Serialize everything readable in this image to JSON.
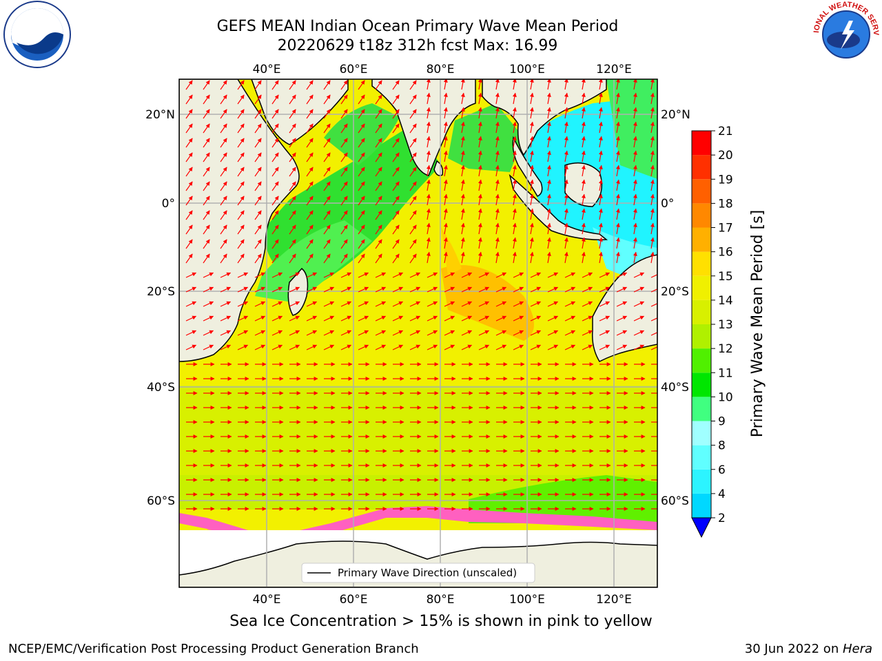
{
  "title_line1": "GEFS MEAN Indian Ocean Primary Wave Mean Period",
  "title_line2": "20220629 t18z 312h fcst   Max: 16.99",
  "logos": {
    "left": "NOAA",
    "right": "NATIONAL WEATHER SERVICE"
  },
  "lon_labels": [
    "40°E",
    "60°E",
    "80°E",
    "100°E",
    "120°E"
  ],
  "lat_labels": [
    "20°N",
    "0°",
    "20°S",
    "40°S",
    "60°S"
  ],
  "colorbar": {
    "label": "Primary Wave Mean Period [s]",
    "ticks": [
      "2",
      "4",
      "6",
      "8",
      "9",
      "10",
      "11",
      "12",
      "13",
      "14",
      "15",
      "16",
      "17",
      "18",
      "19",
      "20",
      "21"
    ],
    "colors": [
      "#0060ff",
      "#00d8ff",
      "#2cf4ff",
      "#60ffff",
      "#a0ffff",
      "#40ff80",
      "#00e600",
      "#50f000",
      "#b0f000",
      "#d8f000",
      "#f0f000",
      "#ffe000",
      "#ffb000",
      "#ff8800",
      "#ff6000",
      "#ff3000",
      "#ff0000"
    ],
    "extend_color": "#0000ff"
  },
  "legend_label": "Primary Wave Direction (unscaled)",
  "sea_ice_note": "Sea Ice Concentration > 15% is shown in pink to yellow",
  "credit": "NCEP/EMC/Verification Post Processing Product Generation Branch",
  "date_prefix": "30 Jun 2022 on ",
  "date_machine": "Hera"
}
